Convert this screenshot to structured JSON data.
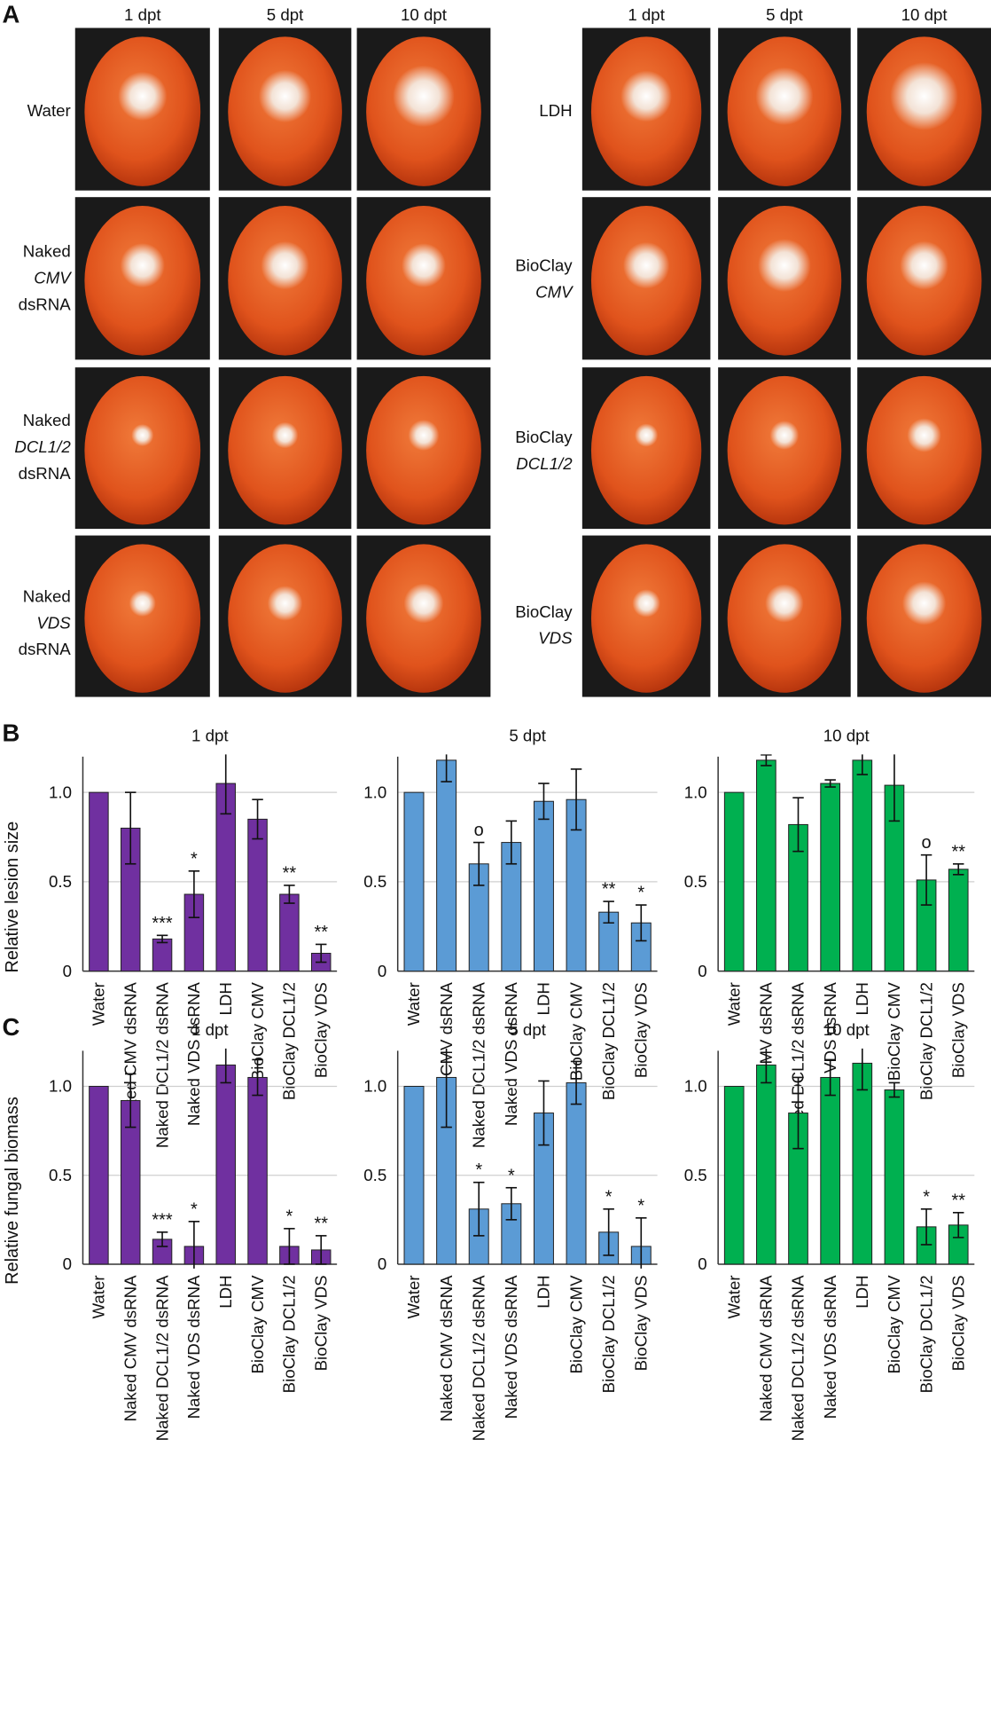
{
  "panel_a": {
    "label": "A",
    "columns_left": [
      "1 dpt",
      "5 dpt",
      "10 dpt"
    ],
    "columns_right": [
      "1 dpt",
      "5 dpt",
      "10 dpt"
    ],
    "rows_left": [
      [
        "Water"
      ],
      [
        "Naked",
        "CMV",
        "dsRNA"
      ],
      [
        "Naked",
        "DCL1/2",
        "dsRNA"
      ],
      [
        "Naked",
        "VDS",
        "dsRNA"
      ]
    ],
    "rows_right": [
      [
        "LDH"
      ],
      [
        "BioClay",
        "CMV"
      ],
      [
        "BioClay",
        "DCL1/2"
      ],
      [
        "BioClay",
        "VDS"
      ]
    ]
  },
  "chart_data": [
    {
      "type": "bar",
      "panel_label": "B",
      "title": "1 dpt",
      "ylabel": "Relative lesion size",
      "color": "#7030a0",
      "categories": [
        "Water",
        "Naked CMV dsRNA",
        "Naked DCL1/2 dsRNA",
        "Naked VDS dsRNA",
        "LDH",
        "BioClay CMV",
        "BioClay DCL1/2",
        "BioClay VDS"
      ],
      "values": [
        1.0,
        0.8,
        0.18,
        0.43,
        1.05,
        0.85,
        0.43,
        0.1
      ],
      "errors": [
        0,
        0.2,
        0.02,
        0.13,
        0.17,
        0.11,
        0.05,
        0.05
      ],
      "annotations": [
        null,
        null,
        "***",
        "*",
        null,
        null,
        "**",
        "**"
      ],
      "ylim": [
        0,
        1.2
      ],
      "yticks": [
        0,
        {
          "value": 0.5,
          "label": "0.5"
        },
        {
          "value": 1,
          "label": "1.0"
        }
      ],
      "grid": true
    },
    {
      "type": "bar",
      "title": "5 dpt",
      "color": "#5b9bd5",
      "categories": [
        "Water",
        "Naked CMV dsRNA",
        "Naked DCL1/2 dsRNA",
        "Naked VDS dsRNA",
        "LDH",
        "BioClay CMV",
        "BioClay DCL1/2",
        "BioClay VDS"
      ],
      "values": [
        1.0,
        1.18,
        0.6,
        0.72,
        0.95,
        0.96,
        0.33,
        0.27
      ],
      "errors": [
        0,
        0.12,
        0.12,
        0.12,
        0.1,
        0.17,
        0.06,
        0.1
      ],
      "annotations": [
        null,
        null,
        "o",
        null,
        null,
        null,
        "**",
        "*"
      ],
      "ylim": [
        0,
        1.2
      ],
      "yticks": [
        0,
        {
          "value": 0.5,
          "label": "0.5"
        },
        {
          "value": 1,
          "label": "1.0"
        }
      ],
      "grid": true
    },
    {
      "type": "bar",
      "title": "10 dpt",
      "color": "#00b050",
      "categories": [
        "Water",
        "Naked CMV dsRNA",
        "Naked DCL1/2 dsRNA",
        "Naked VDS dsRNA",
        "LDH",
        "BioClay CMV",
        "BioClay DCL1/2",
        "BioClay VDS"
      ],
      "values": [
        1.0,
        1.18,
        0.82,
        1.05,
        1.18,
        1.04,
        0.51,
        0.57
      ],
      "errors": [
        0,
        0.03,
        0.15,
        0.02,
        0.08,
        0.2,
        0.14,
        0.03
      ],
      "annotations": [
        null,
        null,
        null,
        null,
        null,
        null,
        "o",
        "**"
      ],
      "ylim": [
        0,
        1.2
      ],
      "yticks": [
        0,
        {
          "value": 0.5,
          "label": "0.5"
        },
        {
          "value": 1,
          "label": "1.0"
        }
      ],
      "grid": true
    },
    {
      "type": "bar",
      "panel_label": "C",
      "title": "1 dpt",
      "ylabel": "Relative fungal biomass",
      "color": "#7030a0",
      "categories": [
        "Water",
        "Naked CMV dsRNA",
        "Naked DCL1/2 dsRNA",
        "Naked VDS dsRNA",
        "LDH",
        "BioClay CMV",
        "BioClay DCL1/2",
        "BioClay VDS"
      ],
      "values": [
        1.0,
        0.92,
        0.14,
        0.1,
        1.12,
        1.05,
        0.1,
        0.08
      ],
      "errors": [
        0,
        0.15,
        0.04,
        0.14,
        0.1,
        0.1,
        0.1,
        0.08
      ],
      "annotations": [
        null,
        null,
        "***",
        "*",
        null,
        null,
        "*",
        "**"
      ],
      "ylim": [
        0,
        1.2
      ],
      "yticks": [
        0,
        {
          "value": 0.5,
          "label": "0.5"
        },
        {
          "value": 1,
          "label": "1.0"
        }
      ],
      "grid": true
    },
    {
      "type": "bar",
      "title": "5 dpt",
      "color": "#5b9bd5",
      "categories": [
        "Water",
        "Naked CMV dsRNA",
        "Naked DCL1/2 dsRNA",
        "Naked VDS dsRNA",
        "LDH",
        "BioClay CMV",
        "BioClay DCL1/2",
        "BioClay VDS"
      ],
      "values": [
        1.0,
        1.05,
        0.31,
        0.34,
        0.85,
        1.02,
        0.18,
        0.1
      ],
      "errors": [
        0,
        0.28,
        0.15,
        0.09,
        0.18,
        0.12,
        0.13,
        0.16
      ],
      "annotations": [
        null,
        null,
        "*",
        "*",
        null,
        null,
        "*",
        "*"
      ],
      "ylim": [
        0,
        1.2
      ],
      "yticks": [
        0,
        {
          "value": 0.5,
          "label": "0.5"
        },
        {
          "value": 1,
          "label": "1.0"
        }
      ],
      "grid": true
    },
    {
      "type": "bar",
      "title": "10 dpt",
      "color": "#00b050",
      "categories": [
        "Water",
        "Naked CMV dsRNA",
        "Naked DCL1/2 dsRNA",
        "Naked VDS dsRNA",
        "LDH",
        "BioClay CMV",
        "BioClay DCL1/2",
        "BioClay VDS"
      ],
      "values": [
        1.0,
        1.12,
        0.85,
        1.05,
        1.13,
        0.98,
        0.21,
        0.22
      ],
      "errors": [
        0,
        0.1,
        0.2,
        0.1,
        0.15,
        0.04,
        0.1,
        0.07
      ],
      "annotations": [
        null,
        null,
        null,
        null,
        null,
        null,
        "*",
        "**"
      ],
      "ylim": [
        0,
        1.2
      ],
      "yticks": [
        0,
        {
          "value": 0.5,
          "label": "0.5"
        },
        {
          "value": 1,
          "label": "1.0"
        }
      ],
      "grid": true
    }
  ]
}
